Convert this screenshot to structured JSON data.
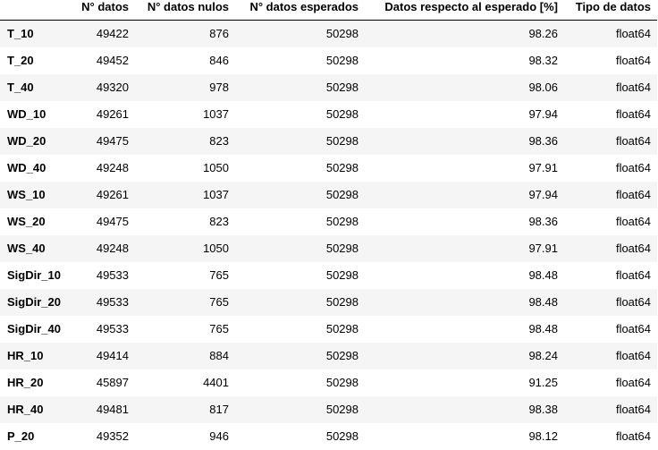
{
  "table": {
    "columns": [
      "",
      "N° datos",
      "N° datos nulos",
      "N° datos esperados",
      "Datos respecto al esperado [%]",
      "Tipo de datos"
    ],
    "rows": [
      {
        "label": "T_10",
        "cells": [
          "49422",
          "876",
          "50298",
          "98.26",
          "float64"
        ]
      },
      {
        "label": "T_20",
        "cells": [
          "49452",
          "846",
          "50298",
          "98.32",
          "float64"
        ]
      },
      {
        "label": "T_40",
        "cells": [
          "49320",
          "978",
          "50298",
          "98.06",
          "float64"
        ]
      },
      {
        "label": "WD_10",
        "cells": [
          "49261",
          "1037",
          "50298",
          "97.94",
          "float64"
        ]
      },
      {
        "label": "WD_20",
        "cells": [
          "49475",
          "823",
          "50298",
          "98.36",
          "float64"
        ]
      },
      {
        "label": "WD_40",
        "cells": [
          "49248",
          "1050",
          "50298",
          "97.91",
          "float64"
        ]
      },
      {
        "label": "WS_10",
        "cells": [
          "49261",
          "1037",
          "50298",
          "97.94",
          "float64"
        ]
      },
      {
        "label": "WS_20",
        "cells": [
          "49475",
          "823",
          "50298",
          "98.36",
          "float64"
        ]
      },
      {
        "label": "WS_40",
        "cells": [
          "49248",
          "1050",
          "50298",
          "97.91",
          "float64"
        ]
      },
      {
        "label": "SigDir_10",
        "cells": [
          "49533",
          "765",
          "50298",
          "98.48",
          "float64"
        ]
      },
      {
        "label": "SigDir_20",
        "cells": [
          "49533",
          "765",
          "50298",
          "98.48",
          "float64"
        ]
      },
      {
        "label": "SigDir_40",
        "cells": [
          "49533",
          "765",
          "50298",
          "98.48",
          "float64"
        ]
      },
      {
        "label": "HR_10",
        "cells": [
          "49414",
          "884",
          "50298",
          "98.24",
          "float64"
        ]
      },
      {
        "label": "HR_20",
        "cells": [
          "45897",
          "4401",
          "50298",
          "91.25",
          "float64"
        ]
      },
      {
        "label": "HR_40",
        "cells": [
          "49481",
          "817",
          "50298",
          "98.38",
          "float64"
        ]
      },
      {
        "label": "P_20",
        "cells": [
          "49352",
          "946",
          "50298",
          "98.12",
          "float64"
        ]
      }
    ]
  }
}
